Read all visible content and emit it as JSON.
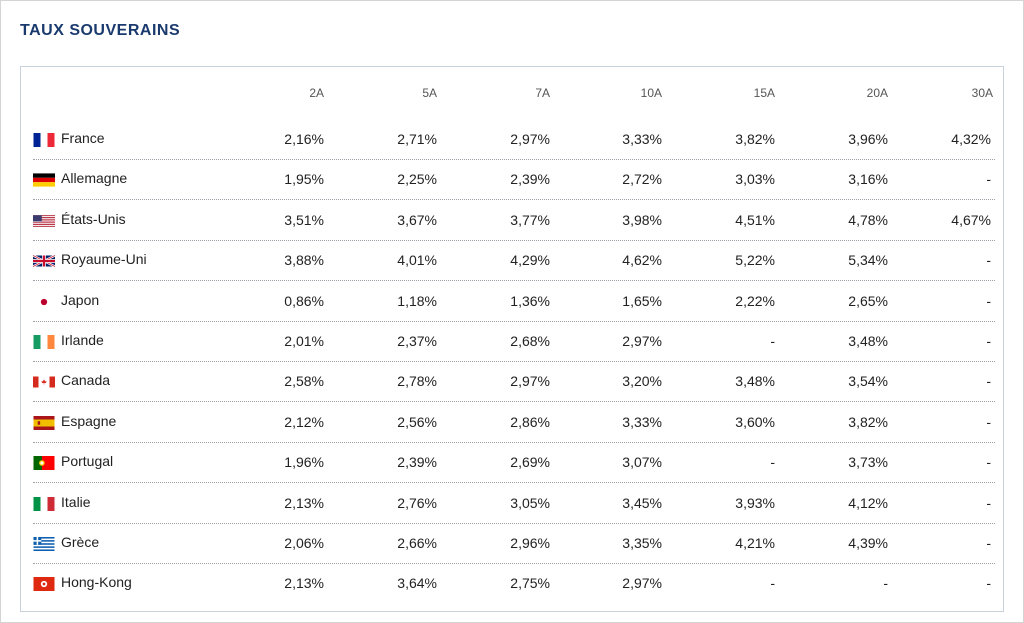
{
  "title": "TAUX SOUVERAINS",
  "columns": [
    "2A",
    "5A",
    "7A",
    "10A",
    "15A",
    "20A",
    "30A"
  ],
  "rows": [
    {
      "country": "France",
      "flag": "france-flag-icon",
      "values": [
        "2,16%",
        "2,71%",
        "2,97%",
        "3,33%",
        "3,82%",
        "3,96%",
        "4,32%"
      ]
    },
    {
      "country": "Allemagne",
      "flag": "germany-flag-icon",
      "values": [
        "1,95%",
        "2,25%",
        "2,39%",
        "2,72%",
        "3,03%",
        "3,16%",
        "-"
      ]
    },
    {
      "country": "États-Unis",
      "flag": "usa-flag-icon",
      "values": [
        "3,51%",
        "3,67%",
        "3,77%",
        "3,98%",
        "4,51%",
        "4,78%",
        "4,67%"
      ]
    },
    {
      "country": "Royaume-Uni",
      "flag": "uk-flag-icon",
      "values": [
        "3,88%",
        "4,01%",
        "4,29%",
        "4,62%",
        "5,22%",
        "5,34%",
        "-"
      ]
    },
    {
      "country": "Japon",
      "flag": "japan-flag-icon",
      "values": [
        "0,86%",
        "1,18%",
        "1,36%",
        "1,65%",
        "2,22%",
        "2,65%",
        "-"
      ]
    },
    {
      "country": "Irlande",
      "flag": "ireland-flag-icon",
      "values": [
        "2,01%",
        "2,37%",
        "2,68%",
        "2,97%",
        "-",
        "3,48%",
        "-"
      ]
    },
    {
      "country": "Canada",
      "flag": "canada-flag-icon",
      "values": [
        "2,58%",
        "2,78%",
        "2,97%",
        "3,20%",
        "3,48%",
        "3,54%",
        "-"
      ]
    },
    {
      "country": "Espagne",
      "flag": "spain-flag-icon",
      "values": [
        "2,12%",
        "2,56%",
        "2,86%",
        "3,33%",
        "3,60%",
        "3,82%",
        "-"
      ]
    },
    {
      "country": "Portugal",
      "flag": "portugal-flag-icon",
      "values": [
        "1,96%",
        "2,39%",
        "2,69%",
        "3,07%",
        "-",
        "3,73%",
        "-"
      ]
    },
    {
      "country": "Italie",
      "flag": "italy-flag-icon",
      "values": [
        "2,13%",
        "2,76%",
        "3,05%",
        "3,45%",
        "3,93%",
        "4,12%",
        "-"
      ]
    },
    {
      "country": "Grèce",
      "flag": "greece-flag-icon",
      "values": [
        "2,06%",
        "2,66%",
        "2,96%",
        "3,35%",
        "4,21%",
        "4,39%",
        "-"
      ]
    },
    {
      "country": "Hong-Kong",
      "flag": "hong-kong-flag-icon",
      "values": [
        "2,13%",
        "3,64%",
        "2,75%",
        "2,97%",
        "-",
        "-",
        "-"
      ]
    }
  ],
  "colors": {
    "title": "#1a3a6e",
    "border": "#c8d2dc"
  }
}
